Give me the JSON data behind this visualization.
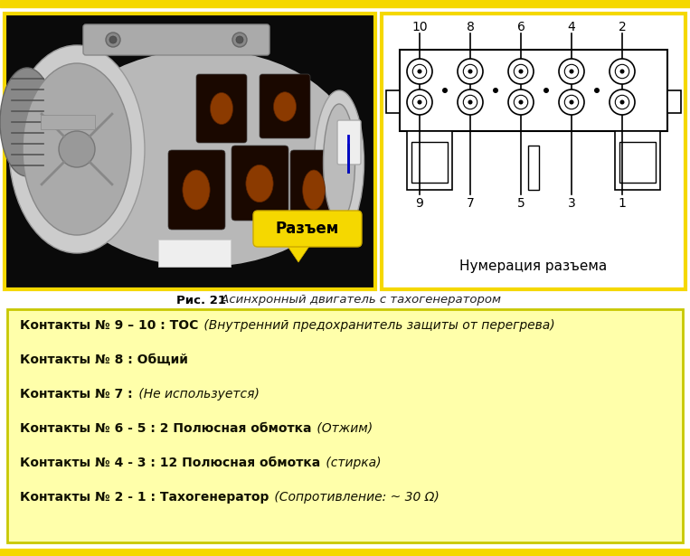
{
  "bg_color": "#ffffff",
  "top_border_color": "#f5d800",
  "left_photo_border_color": "#f5d800",
  "right_diagram_border_color": "#f5d800",
  "caption_bold": "Рис. 21",
  "caption_italic": " Асинхронный двигатель с тахогенератором",
  "info_box_bg": "#ffffaa",
  "info_box_border": "#c8c800",
  "connector_label": "Разъем",
  "connector_label_bg": "#f5d800",
  "numbering_label": "Нумерация разъема",
  "top_numbers": [
    "10",
    "8",
    "6",
    "4",
    "2"
  ],
  "bottom_numbers": [
    "9",
    "7",
    "5",
    "3",
    "1"
  ],
  "lines": [
    {
      "bold_part": "Контакты № 9 – 10 : ТОС",
      "italic_part": " (Внутренний предохранитель защиты от перегрева)"
    },
    {
      "bold_part": "Контакты № 8 : Общий",
      "italic_part": ""
    },
    {
      "bold_part": "Контакты № 7 :",
      "italic_part": " (Не используется)"
    },
    {
      "bold_part": "Контакты № 6 - 5 : 2 Полюсная обмотка",
      "italic_part": " (Отжим)"
    },
    {
      "bold_part": "Контакты № 4 - 3 : 12 Полюсная обмотка",
      "italic_part": " (стирка)"
    },
    {
      "bold_part": "Контакты № 2 - 1 : Тахогенератор",
      "italic_part": " (Сопротивление: ~ 30 Ω)"
    }
  ],
  "bottom_bar_color": "#f5d800"
}
